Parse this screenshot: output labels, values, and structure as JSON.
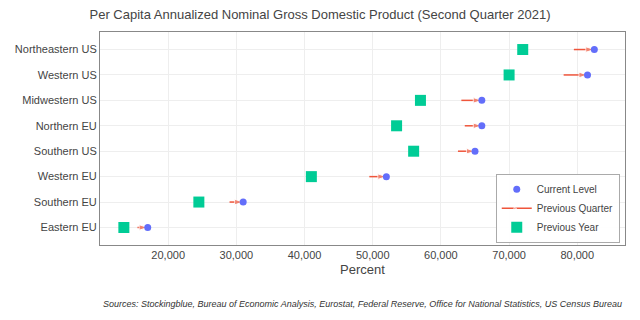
{
  "chart_data": {
    "type": "dot",
    "title": "Per Capita Annualized Nominal Gross Domestic Product (Second Quarter 2021)",
    "x_label": "Percent",
    "annotations": [
      "Sources: Stockingblue, Bureau of Economic Analysis, Eurostat, Federal Reserve, Office for National Statistics, US Census Bureau"
    ],
    "categories": [
      "Eastern EU",
      "Southern EU",
      "Western EU",
      "Southern US",
      "Northern EU",
      "Midwestern US",
      "Western US",
      "Northeastern US"
    ],
    "series": [
      {
        "name": "Current Level",
        "type": "scatter",
        "marker": "circle",
        "values": [
          17000,
          31000,
          52000,
          65000,
          66000,
          66000,
          81500,
          82500
        ]
      },
      {
        "name": "Previous Quarter",
        "type": "arrow",
        "marker": "arrow",
        "values": [
          15500,
          29000,
          49500,
          62500,
          63500,
          63000,
          78000,
          79500
        ]
      },
      {
        "name": "Previous Year",
        "type": "scatter",
        "marker": "square",
        "values": [
          13500,
          24500,
          41000,
          56000,
          53500,
          57000,
          70000,
          72000
        ]
      }
    ],
    "orientation": "horizontal",
    "xlim": [
      10000,
      87000
    ],
    "xticks": [
      {
        "value": 20000,
        "label": "20,000"
      },
      {
        "value": 30000,
        "label": "30,000"
      },
      {
        "value": 40000,
        "label": "40,000"
      },
      {
        "value": 50000,
        "label": "50,000"
      },
      {
        "value": 60000,
        "label": "60,000"
      },
      {
        "value": 70000,
        "label": "70,000"
      },
      {
        "value": 80000,
        "label": "80,000"
      }
    ],
    "grid": true,
    "legend": "lower right"
  }
}
